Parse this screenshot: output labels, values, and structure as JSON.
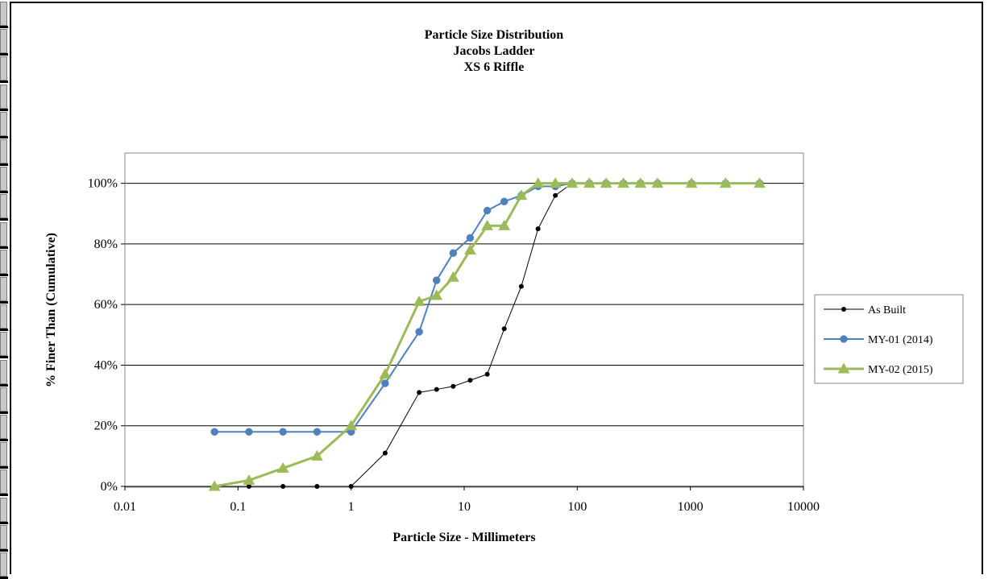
{
  "chart_data": {
    "type": "line",
    "title": [
      "Particle Size Distribution",
      "Jacobs Ladder",
      "XS 6 Riffle"
    ],
    "xlabel": "Particle Size - Millimeters",
    "ylabel": "% Finer Than (Cumulative)",
    "xscale": "log",
    "xlim": [
      0.01,
      10000
    ],
    "ylim": [
      0,
      1.1
    ],
    "x_ticks": [
      {
        "value": 0.01,
        "label": "0.01"
      },
      {
        "value": 0.1,
        "label": "0.1"
      },
      {
        "value": 1,
        "label": "1"
      },
      {
        "value": 10,
        "label": "10"
      },
      {
        "value": 100,
        "label": "100"
      },
      {
        "value": 1000,
        "label": "1000"
      },
      {
        "value": 10000,
        "label": "10000"
      }
    ],
    "y_ticks": [
      {
        "value": 0,
        "label": "0%"
      },
      {
        "value": 0.2,
        "label": "20%"
      },
      {
        "value": 0.4,
        "label": "40%"
      },
      {
        "value": 0.6,
        "label": "60%"
      },
      {
        "value": 0.8,
        "label": "80%"
      },
      {
        "value": 1.0,
        "label": "100%"
      }
    ],
    "grid": "horizontal",
    "legend_position": "right",
    "series": [
      {
        "name": "As Built",
        "color": "#000000",
        "marker": "circle-small",
        "x": [
          0.125,
          0.25,
          0.5,
          1,
          2,
          4,
          5.7,
          8,
          11.3,
          16,
          22.6,
          32,
          45,
          64,
          90
        ],
        "y": [
          0,
          0,
          0,
          0,
          0.11,
          0.31,
          0.32,
          0.33,
          0.35,
          0.37,
          0.52,
          0.66,
          0.85,
          0.96,
          1.0
        ]
      },
      {
        "name": "MY-01 (2014)",
        "color": "#4f81bd",
        "marker": "circle",
        "x": [
          0.062,
          0.125,
          0.25,
          0.5,
          1,
          2,
          4,
          5.7,
          8,
          11.3,
          16,
          22.6,
          32,
          45,
          64,
          90,
          128,
          180,
          256,
          362,
          512,
          1024,
          2048,
          4096
        ],
        "y": [
          0.18,
          0.18,
          0.18,
          0.18,
          0.18,
          0.34,
          0.51,
          0.68,
          0.77,
          0.82,
          0.91,
          0.94,
          0.96,
          0.99,
          0.99,
          1.0,
          1.0,
          1.0,
          1.0,
          1.0,
          1.0,
          1.0,
          1.0,
          1.0
        ]
      },
      {
        "name": "MY-02 (2015)",
        "color": "#9bbb59",
        "marker": "triangle",
        "x": [
          0.062,
          0.125,
          0.25,
          0.5,
          1,
          2,
          4,
          5.7,
          8,
          11.3,
          16,
          22.6,
          32,
          45,
          64,
          90,
          128,
          180,
          256,
          362,
          512,
          1024,
          2048,
          4096
        ],
        "y": [
          0,
          0.02,
          0.06,
          0.1,
          0.2,
          0.37,
          0.61,
          0.63,
          0.69,
          0.78,
          0.86,
          0.86,
          0.96,
          1.0,
          1.0,
          1.0,
          1.0,
          1.0,
          1.0,
          1.0,
          1.0,
          1.0,
          1.0,
          1.0
        ]
      }
    ]
  }
}
